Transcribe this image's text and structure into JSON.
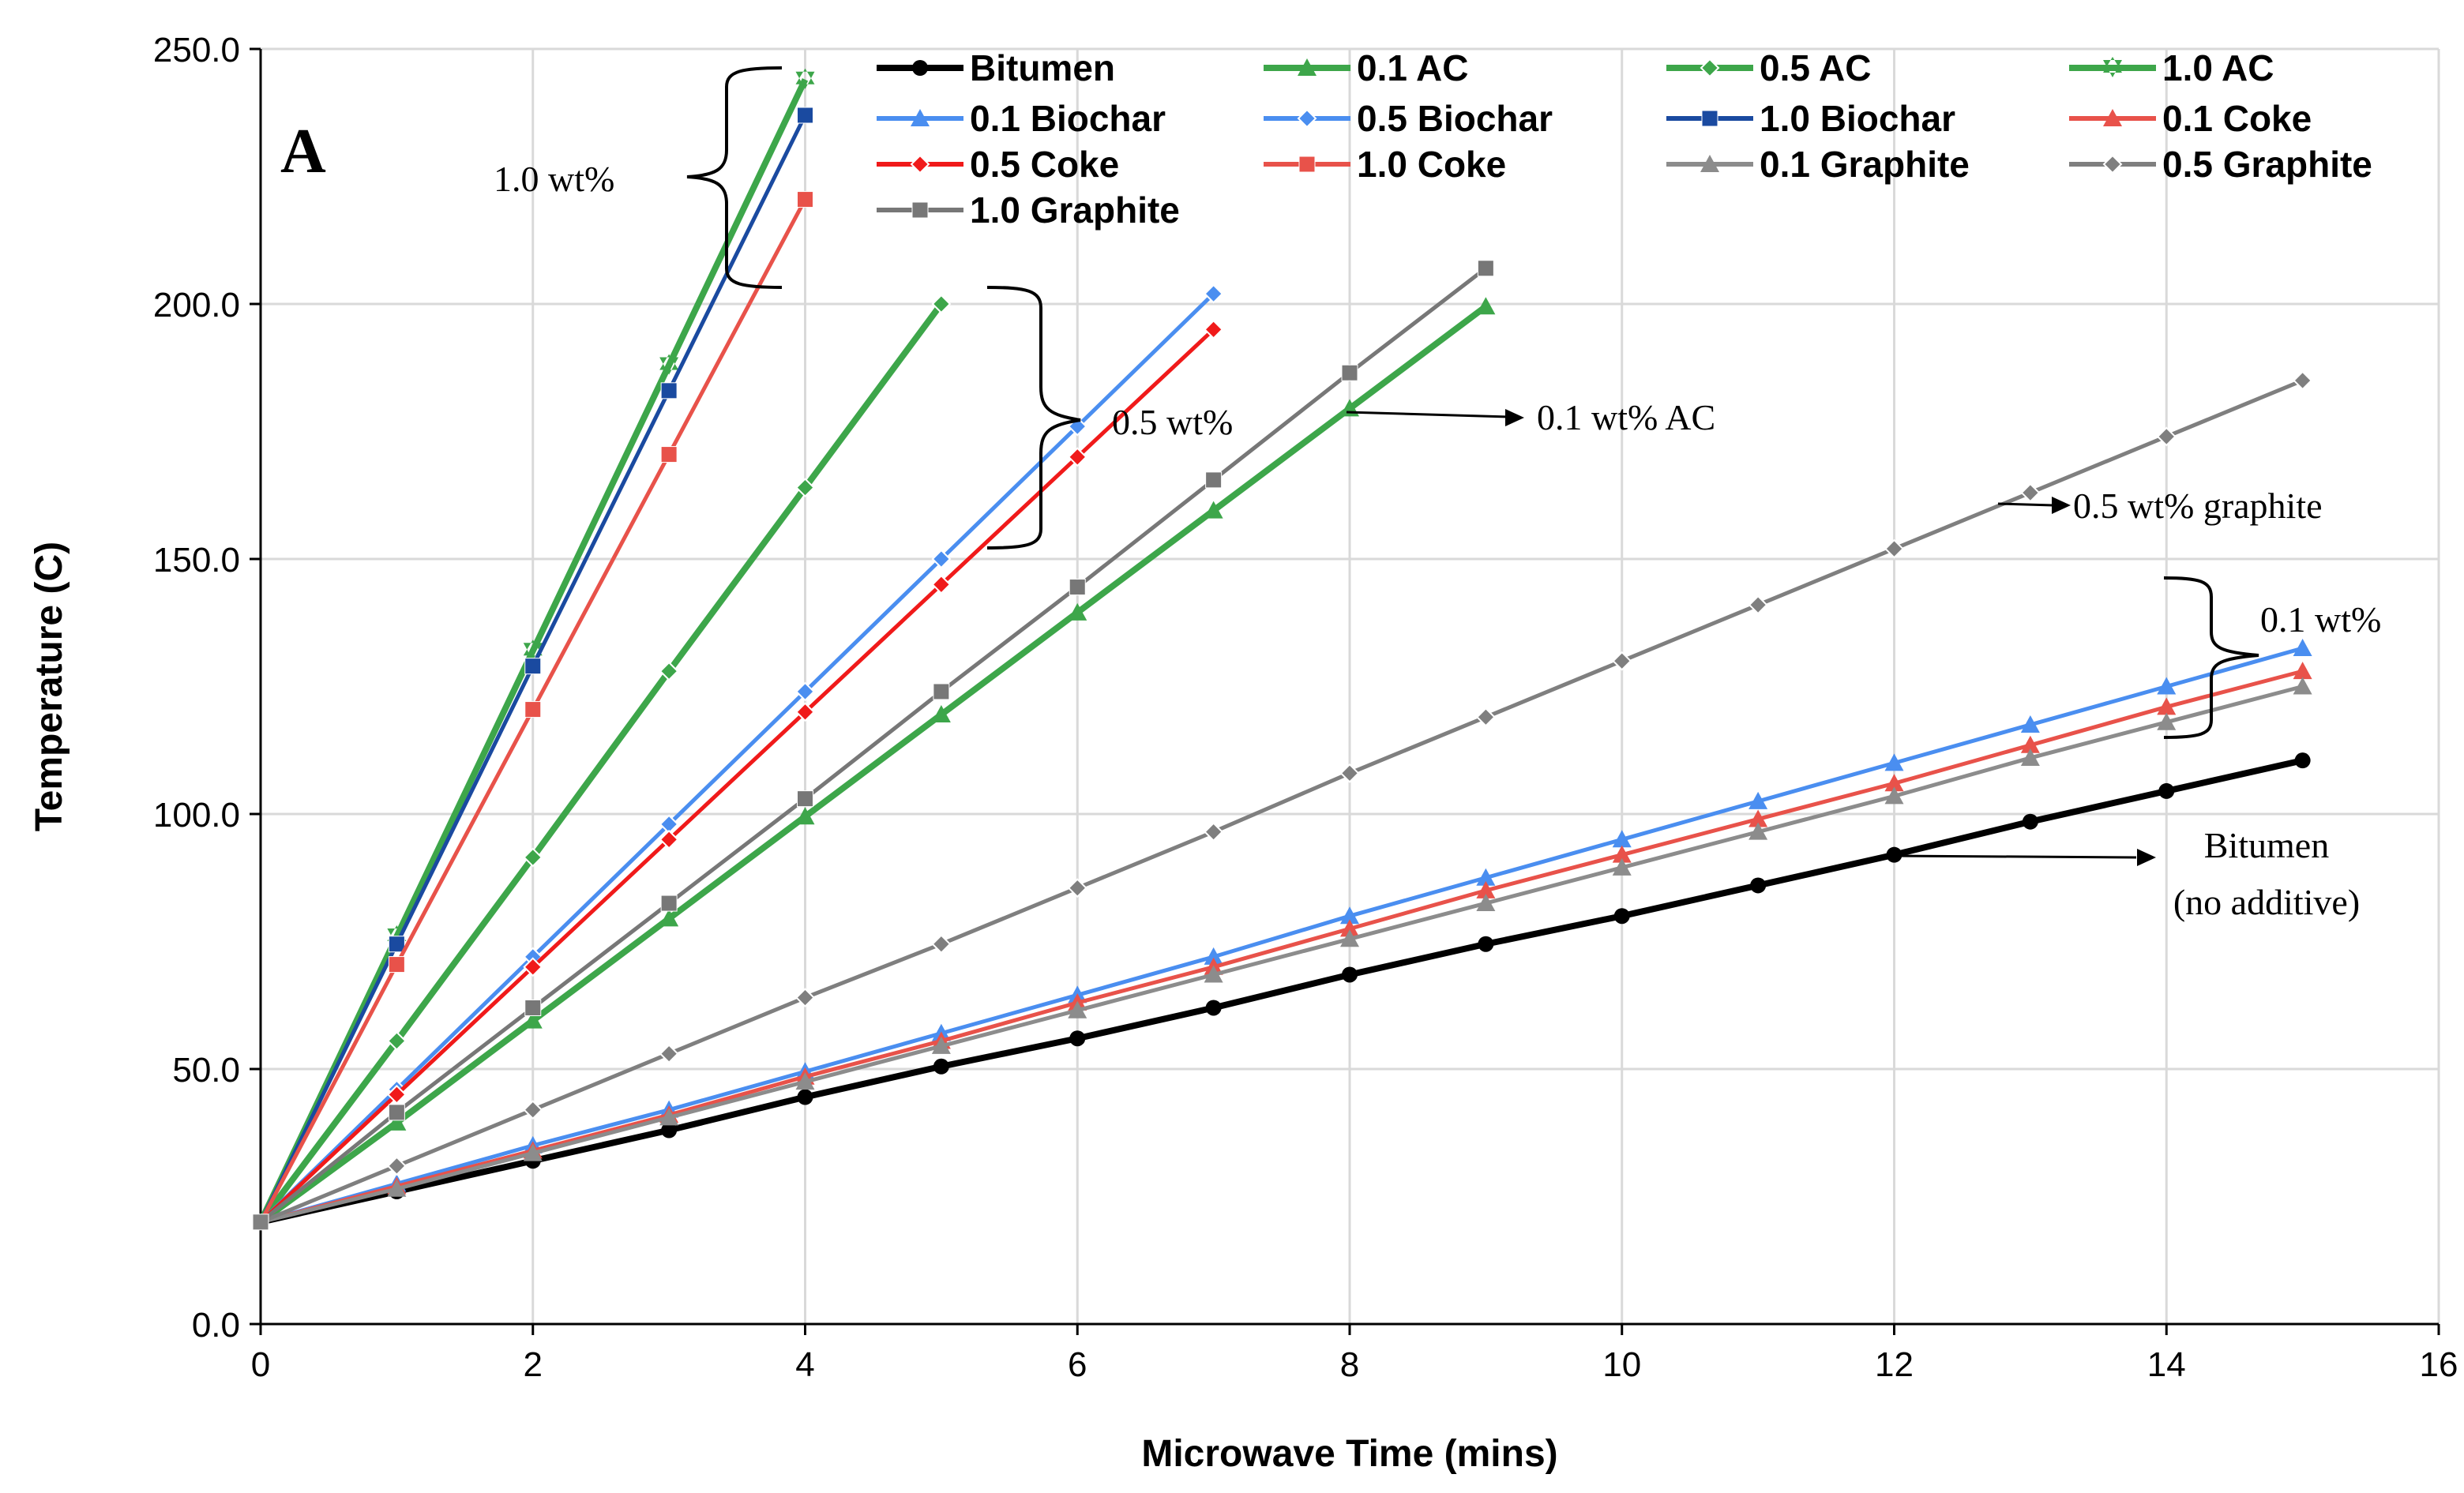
{
  "chart_data": {
    "type": "line",
    "panel_label": "A",
    "title": "",
    "xlabel": "Microwave Time (mins)",
    "ylabel": "Temperature (C)",
    "xlim": [
      0,
      16
    ],
    "ylim": [
      0,
      250
    ],
    "x_ticks": [
      0,
      2,
      4,
      6,
      8,
      10,
      12,
      14,
      16
    ],
    "y_ticks": [
      0,
      50,
      100,
      150,
      200,
      250
    ],
    "y_tick_labels": [
      "0.0",
      "50.0",
      "100.0",
      "150.0",
      "200.0",
      "250.0"
    ],
    "grid": true,
    "legend_position": "top",
    "series": [
      {
        "name": "Bitumen",
        "color": "#000000",
        "marker": "circle",
        "x": [
          0,
          1,
          2,
          3,
          4,
          5,
          6,
          7,
          8,
          9,
          10,
          11,
          12,
          13,
          14,
          15
        ],
        "y": [
          20,
          26,
          32,
          38,
          44.5,
          50.5,
          56,
          62,
          68.5,
          74.5,
          80,
          86,
          92,
          98.5,
          104.5,
          110.5
        ]
      },
      {
        "name": "0.1 AC",
        "color": "#3da64a",
        "marker": "triangle",
        "x": [
          0,
          1,
          2,
          3,
          4,
          5,
          6,
          7,
          8,
          9
        ],
        "y": [
          20,
          39.5,
          59.5,
          79.5,
          99.5,
          119.5,
          139.5,
          159.5,
          179.5,
          199.5
        ]
      },
      {
        "name": "0.5 AC",
        "color": "#3da64a",
        "marker": "diamond",
        "x": [
          0,
          1,
          2,
          3,
          4,
          5
        ],
        "y": [
          20,
          55.5,
          91.5,
          128,
          164,
          200
        ]
      },
      {
        "name": "1.0 AC",
        "color": "#3da64a",
        "marker": "star",
        "x": [
          0,
          1,
          2,
          3,
          4
        ],
        "y": [
          20,
          76,
          132,
          188,
          244
        ]
      },
      {
        "name": "0.1 Biochar",
        "color": "#4a8ef0",
        "marker": "triangle",
        "x": [
          0,
          1,
          2,
          3,
          4,
          5,
          6,
          7,
          8,
          9,
          10,
          11,
          12,
          13,
          14,
          15
        ],
        "y": [
          20,
          27.5,
          35,
          42,
          49.5,
          57,
          64.5,
          72,
          80,
          87.5,
          95,
          102.5,
          110,
          117.5,
          125,
          132.5
        ]
      },
      {
        "name": "0.5 Biochar",
        "color": "#4a8ef0",
        "marker": "diamond",
        "x": [
          0,
          1,
          2,
          3,
          4,
          5,
          6,
          7
        ],
        "y": [
          20,
          46,
          72,
          98,
          124,
          150,
          176,
          202
        ]
      },
      {
        "name": "1.0 Biochar",
        "color": "#1a4aa0",
        "marker": "square",
        "x": [
          0,
          1,
          2,
          3,
          4
        ],
        "y": [
          20,
          74.5,
          129,
          183,
          237
        ]
      },
      {
        "name": "0.1 Coke",
        "color": "#e8524a",
        "marker": "triangle",
        "x": [
          0,
          1,
          2,
          3,
          4,
          5,
          6,
          7,
          8,
          9,
          10,
          11,
          12,
          13,
          14,
          15
        ],
        "y": [
          20,
          27,
          34,
          41,
          48.5,
          55.5,
          63,
          70,
          77.5,
          85,
          92,
          99,
          106,
          113.5,
          121,
          128
        ]
      },
      {
        "name": "0.5 Coke",
        "color": "#f01a1a",
        "marker": "diamond",
        "x": [
          0,
          1,
          2,
          3,
          4,
          5,
          6,
          7
        ],
        "y": [
          20,
          45,
          70,
          95,
          120,
          145,
          170,
          195
        ]
      },
      {
        "name": "1.0 Coke",
        "color": "#e8524a",
        "marker": "square",
        "x": [
          0,
          1,
          2,
          3,
          4
        ],
        "y": [
          20,
          70.5,
          120.5,
          170.5,
          220.5
        ]
      },
      {
        "name": "0.1 Graphite",
        "color": "#8c8c8c",
        "marker": "triangle",
        "x": [
          0,
          1,
          2,
          3,
          4,
          5,
          6,
          7,
          8,
          9,
          10,
          11,
          12,
          13,
          14,
          15
        ],
        "y": [
          20,
          26.5,
          33.5,
          40.5,
          47.5,
          54.5,
          61.5,
          68.5,
          75.5,
          82.5,
          89.5,
          96.5,
          103.5,
          111,
          118,
          125
        ]
      },
      {
        "name": "0.5 Graphite",
        "color": "#7f7f7f",
        "marker": "diamond",
        "x": [
          0,
          1,
          2,
          3,
          4,
          5,
          6,
          7,
          8,
          9,
          10,
          11,
          12,
          13,
          14,
          15
        ],
        "y": [
          20,
          31,
          42,
          53,
          64,
          74.5,
          85.5,
          96.5,
          108,
          119,
          130,
          141,
          152,
          163,
          174,
          185
        ]
      },
      {
        "name": "1.0 Graphite",
        "color": "#777777",
        "marker": "square",
        "x": [
          0,
          1,
          2,
          3,
          4,
          5,
          6,
          7,
          8,
          9
        ],
        "y": [
          20,
          41.5,
          62,
          82.5,
          103,
          124,
          144.5,
          165.5,
          186.5,
          207
        ]
      }
    ],
    "annotations": {
      "wt1": "1.0 wt%",
      "wt05": "0.5 wt%",
      "ac01": "0.1 wt% AC",
      "graphite05": "0.5 wt% graphite",
      "wt01": "0.1 wt%",
      "bitumen_line1": "Bitumen",
      "bitumen_line2": "(no additive)"
    }
  }
}
